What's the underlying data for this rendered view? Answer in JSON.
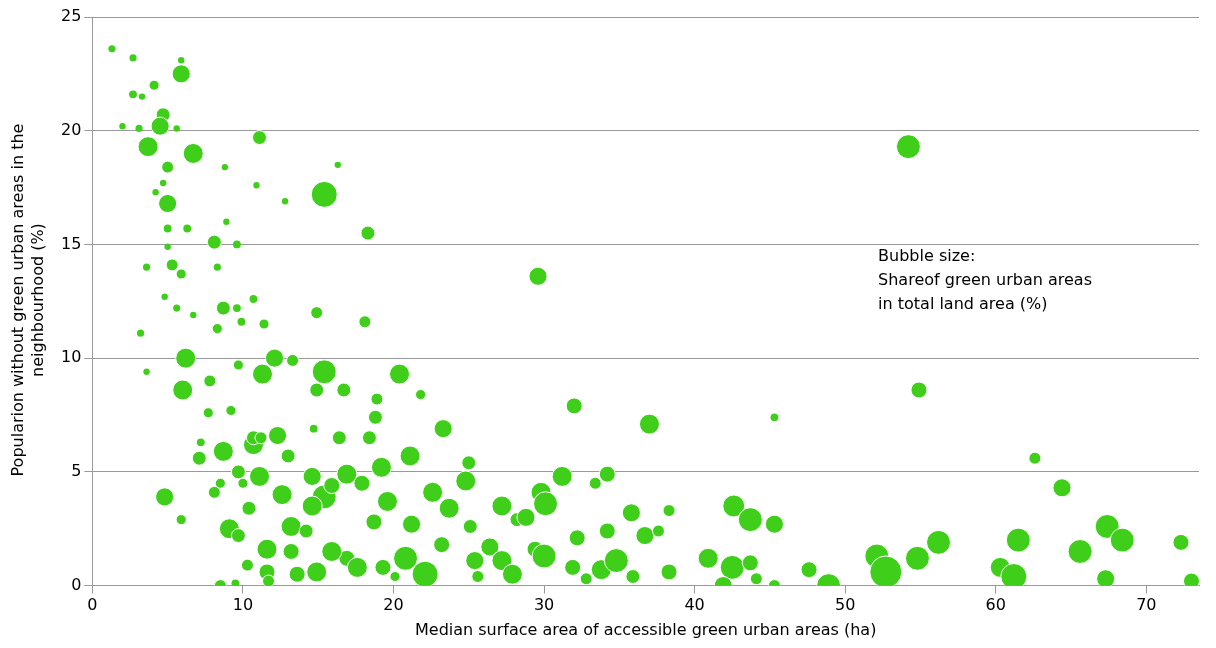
{
  "chart_data": {
    "type": "bubble",
    "xlabel": "Median surface area of accessible green urban areas (ha)",
    "ylabel": "Popularion without green urban areas in the neighbourhood (%)",
    "annotations": [
      "Bubble size:\nShareof green urban areas\nin total land area (%)"
    ],
    "xlim": [
      0,
      73.5
    ],
    "xticks": [
      0,
      10,
      20,
      30,
      40,
      50,
      60,
      70
    ],
    "ylim": [
      0,
      25
    ],
    "yticks": [
      0,
      5,
      10,
      15,
      20,
      25
    ],
    "grid": "y",
    "legend": false,
    "series": [
      {
        "color": "#3fcf1a",
        "x": [
          1.3,
          2.7,
          5.9,
          5.9,
          2.7,
          4.1,
          3.3,
          2.0,
          3.1,
          4.7,
          4.5,
          5.6,
          11.1,
          3.7,
          6.7,
          15.4,
          16.3,
          54.2,
          8.8,
          5.0,
          4.7,
          10.9,
          5.0,
          12.8,
          8.9,
          4.2,
          8.1,
          9.6,
          18.3,
          6.3,
          5.0,
          5.3,
          3.6,
          8.3,
          5.0,
          5.9,
          29.6,
          8.7,
          9.6,
          10.7,
          4.8,
          5.6,
          6.7,
          14.9,
          9.9,
          8.3,
          18.1,
          11.4,
          3.2,
          6.2,
          6.0,
          3.6,
          11.3,
          12.1,
          15.4,
          20.4,
          32.0,
          54.9,
          37.0,
          45.3,
          14.9,
          16.7,
          9.7,
          13.3,
          7.8,
          7.7,
          9.2,
          18.9,
          21.8,
          14.7,
          23.3,
          18.8,
          18.4,
          16.4,
          8.7,
          10.7,
          12.3,
          7.1,
          10.7,
          21.1,
          19.2,
          25.0,
          34.2,
          31.2,
          4.8,
          64.4,
          62.6,
          29.8,
          30.1,
          33.4,
          35.8,
          38.3,
          42.6,
          43.7,
          45.3,
          36.7,
          37.6,
          32.2,
          34.2,
          28.2,
          25.1,
          15.4,
          14.6,
          12.6,
          11.1,
          9.7,
          9.1,
          5.9,
          8.5,
          10.4,
          11.6,
          11.6,
          10.3,
          13.6,
          14.9,
          16.9,
          17.6,
          15.9,
          18.7,
          19.6,
          21.2,
          20.8,
          22.1,
          23.2,
          25.4,
          25.6,
          26.4,
          27.2,
          27.9,
          29.4,
          30.0,
          31.9,
          32.8,
          33.8,
          34.8,
          35.9,
          38.3,
          40.9,
          42.5,
          41.9,
          43.7,
          44.1,
          45.3,
          47.6,
          48.9,
          52.1,
          52.7,
          54.8,
          56.2,
          60.3,
          61.5,
          61.2,
          65.6,
          67.4,
          68.4,
          67.3,
          72.3,
          73.0,
          16.9,
          17.9,
          22.6,
          23.7,
          24.8,
          27.2,
          28.8,
          13.2,
          11.2,
          14.6,
          13.2,
          9.5,
          9.7,
          14.2,
          13.0,
          8.5,
          10.0,
          15.9,
          7.2,
          8.1,
          11.7,
          20.1,
          19.3
        ],
        "values": [
          23.6,
          23.2,
          23.1,
          22.5,
          21.6,
          22.0,
          21.5,
          20.2,
          20.1,
          20.7,
          20.2,
          20.1,
          19.7,
          19.3,
          19.0,
          17.2,
          18.5,
          19.3,
          18.4,
          18.4,
          17.7,
          17.6,
          16.8,
          16.9,
          16.0,
          17.3,
          15.1,
          15.0,
          15.5,
          15.7,
          15.7,
          14.1,
          14.0,
          14.0,
          14.9,
          13.7,
          13.6,
          12.2,
          12.2,
          12.6,
          12.7,
          12.2,
          11.9,
          12.0,
          11.6,
          11.3,
          11.6,
          11.5,
          11.1,
          10.0,
          8.6,
          9.4,
          9.3,
          10.0,
          9.4,
          9.3,
          7.9,
          8.6,
          7.1,
          7.4,
          8.6,
          8.6,
          9.7,
          9.9,
          9.0,
          7.6,
          7.7,
          8.2,
          8.4,
          6.9,
          6.9,
          7.4,
          6.5,
          6.5,
          5.9,
          6.2,
          6.6,
          5.6,
          6.5,
          5.7,
          5.2,
          5.4,
          4.9,
          4.8,
          3.9,
          4.3,
          5.6,
          4.1,
          3.6,
          4.5,
          3.2,
          3.3,
          3.5,
          2.9,
          2.7,
          2.2,
          2.4,
          2.1,
          2.4,
          2.9,
          2.6,
          3.9,
          3.5,
          4.0,
          4.8,
          5.0,
          2.5,
          2.9,
          0.0,
          3.4,
          1.6,
          0.6,
          0.9,
          0.5,
          0.6,
          1.2,
          0.8,
          1.5,
          2.8,
          3.7,
          2.7,
          1.2,
          0.5,
          1.8,
          1.1,
          0.4,
          1.7,
          1.1,
          0.5,
          1.6,
          1.3,
          0.8,
          0.3,
          0.7,
          1.1,
          0.4,
          0.6,
          1.2,
          0.8,
          0.0,
          1.0,
          0.3,
          0.0,
          0.7,
          0.0,
          1.3,
          0.6,
          1.2,
          1.9,
          0.8,
          2.0,
          0.4,
          1.5,
          2.6,
          2.0,
          0.3,
          1.9,
          0.2,
          4.9,
          4.5,
          4.1,
          3.4,
          4.6,
          3.5,
          3.0,
          1.5,
          6.5,
          4.8,
          2.6,
          0.1,
          2.2,
          2.4,
          5.7,
          4.5,
          4.5,
          4.4,
          6.3,
          4.1,
          0.2,
          0.4,
          0.8
        ],
        "sizes": [
          0.05,
          0.05,
          0.04,
          0.32,
          0.06,
          0.1,
          0.04,
          0.04,
          0.05,
          0.19,
          0.32,
          0.04,
          0.19,
          0.39,
          0.39,
          0.66,
          0.04,
          0.56,
          0.04,
          0.14,
          0.04,
          0.04,
          0.32,
          0.04,
          0.04,
          0.04,
          0.19,
          0.06,
          0.19,
          0.06,
          0.06,
          0.14,
          0.05,
          0.05,
          0.04,
          0.1,
          0.32,
          0.19,
          0.06,
          0.06,
          0.04,
          0.05,
          0.04,
          0.14,
          0.06,
          0.1,
          0.14,
          0.1,
          0.05,
          0.39,
          0.39,
          0.04,
          0.39,
          0.32,
          0.56,
          0.39,
          0.25,
          0.25,
          0.39,
          0.06,
          0.19,
          0.19,
          0.1,
          0.14,
          0.14,
          0.1,
          0.1,
          0.14,
          0.1,
          0.06,
          0.32,
          0.19,
          0.19,
          0.19,
          0.39,
          0.39,
          0.32,
          0.19,
          0.19,
          0.39,
          0.39,
          0.19,
          0.25,
          0.39,
          0.32,
          0.32,
          0.14,
          0.39,
          0.56,
          0.14,
          0.32,
          0.14,
          0.47,
          0.56,
          0.32,
          0.32,
          0.14,
          0.25,
          0.25,
          0.19,
          0.19,
          0.56,
          0.39,
          0.39,
          0.39,
          0.19,
          0.39,
          0.1,
          0.14,
          0.19,
          0.39,
          0.25,
          0.14,
          0.25,
          0.39,
          0.25,
          0.39,
          0.39,
          0.25,
          0.39,
          0.32,
          0.56,
          0.66,
          0.25,
          0.32,
          0.14,
          0.32,
          0.39,
          0.39,
          0.25,
          0.56,
          0.25,
          0.14,
          0.39,
          0.56,
          0.19,
          0.25,
          0.39,
          0.56,
          0.32,
          0.25,
          0.14,
          0.14,
          0.25,
          0.56,
          0.56,
          1,
          0.56,
          0.56,
          0.39,
          0.56,
          0.66,
          0.56,
          0.56,
          0.56,
          0.32,
          0.25,
          0.25,
          0.39,
          0.25,
          0.39,
          0.39,
          0.39,
          0.39,
          0.32,
          0.25,
          0.14,
          0.32,
          0.39,
          0.06,
          0.19,
          0.19,
          0.19,
          0.1,
          0.1,
          0.25,
          0.06,
          0.14,
          0.14,
          0.1,
          0.25
        ]
      }
    ]
  }
}
